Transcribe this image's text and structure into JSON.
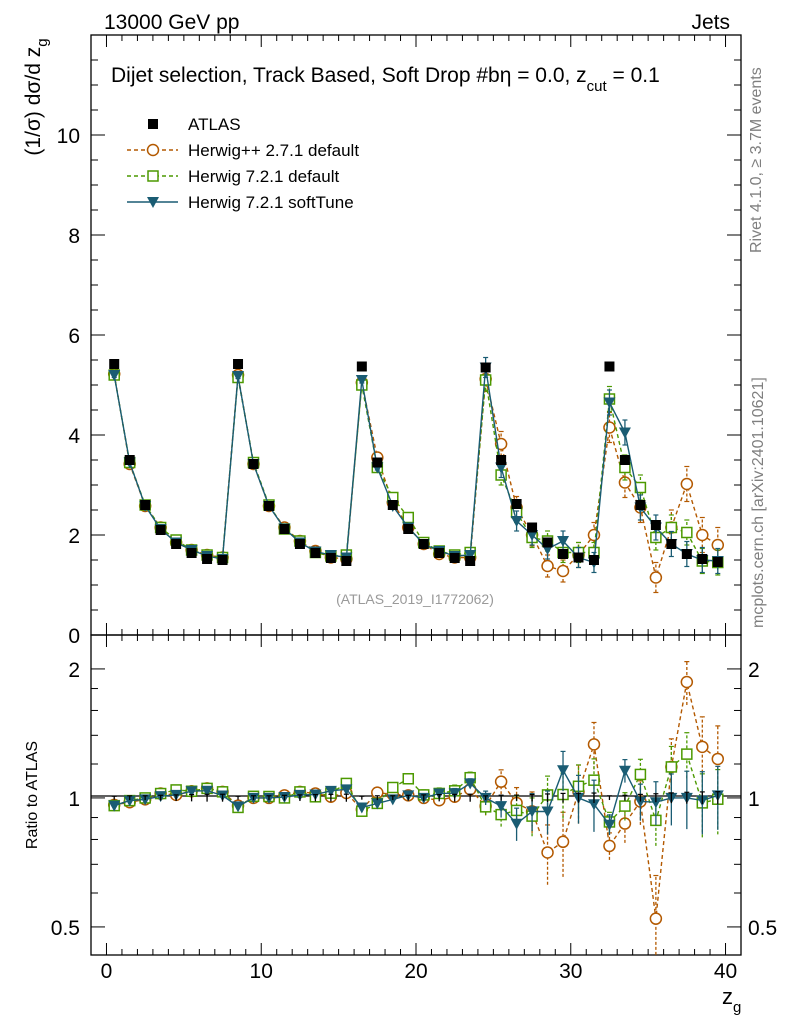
{
  "header": {
    "left": "13000 GeV pp",
    "right": "Jets"
  },
  "side_labels": {
    "rivet": "Rivet 4.1.0, ≥ 3.7M events",
    "mcplots": "mcplots.cern.ch [arXiv:2401.10621]"
  },
  "chart_data": {
    "type": "scatter",
    "title": "Dijet selection, Track Based, Soft Drop #b",
    "title_suffix": "η = 0.0, z",
    "title_sub": "cut",
    "title_end": " = 0.1",
    "watermark": "(ATLAS_2019_I1772062)",
    "ylabel": "(1/σ) dσ/d z",
    "ylabel_sub": "g",
    "ratio_ylabel": "Ratio to ATLAS",
    "xlabel": "z",
    "xlabel_sub": "g",
    "xlim": [
      -1,
      41
    ],
    "ylim": [
      0,
      12
    ],
    "ratio_ylim": [
      0.43,
      2.4
    ],
    "x_ticks": [
      0,
      10,
      20,
      30,
      40
    ],
    "x_tick_labels": [
      "0",
      "10",
      "20",
      "30",
      "40"
    ],
    "y_ticks": [
      0,
      2,
      4,
      6,
      8,
      10
    ],
    "y_tick_labels": [
      "0",
      "2",
      "4",
      "6",
      "8",
      "10"
    ],
    "ratio_ticks": [
      0.5,
      1,
      2
    ],
    "ratio_tick_labels": [
      "0.5",
      "1",
      "2"
    ],
    "legend": [
      {
        "name": "ATLAS",
        "color": "#000000",
        "marker": "square-filled",
        "line": "none"
      },
      {
        "name": "Herwig++ 2.7.1 default",
        "color": "#b35900",
        "marker": "circle-open",
        "line": "dashed"
      },
      {
        "name": "Herwig 7.2.1 default",
        "color": "#4c9900",
        "marker": "square-open",
        "line": "dashed"
      },
      {
        "name": "Herwig 7.2.1 softTune",
        "color": "#1a5c73",
        "marker": "triangle-down-filled",
        "line": "solid"
      }
    ],
    "x": [
      0.5,
      1.5,
      2.5,
      3.5,
      4.5,
      5.5,
      6.5,
      7.5,
      8.5,
      9.5,
      10.5,
      11.5,
      12.5,
      13.5,
      14.5,
      15.5,
      16.5,
      17.5,
      18.5,
      19.5,
      20.5,
      21.5,
      22.5,
      23.5,
      24.5,
      25.5,
      26.5,
      27.5,
      28.5,
      29.5,
      30.5,
      31.5,
      32.5,
      33.5,
      34.5,
      35.5,
      36.5,
      37.5,
      38.5,
      39.5
    ],
    "series": [
      {
        "name": "ATLAS",
        "values": [
          5.42,
          3.5,
          2.6,
          2.1,
          1.82,
          1.64,
          1.52,
          1.5,
          5.42,
          3.42,
          2.58,
          2.12,
          1.82,
          1.64,
          1.54,
          1.48,
          5.37,
          3.45,
          2.6,
          2.12,
          1.82,
          1.64,
          1.54,
          1.48,
          5.35,
          3.5,
          2.62,
          2.15,
          1.85,
          1.62,
          1.55,
          1.5,
          5.37,
          3.5,
          2.6,
          2.2,
          1.82,
          1.62,
          1.52,
          1.46
        ],
        "errors": [
          0.05,
          0.04,
          0.03,
          0.03,
          0.03,
          0.03,
          0.03,
          0.03,
          0.05,
          0.04,
          0.03,
          0.03,
          0.03,
          0.03,
          0.03,
          0.03,
          0.05,
          0.04,
          0.03,
          0.03,
          0.03,
          0.03,
          0.03,
          0.03,
          0.06,
          0.05,
          0.04,
          0.04,
          0.04,
          0.04,
          0.04,
          0.04,
          0.06,
          0.05,
          0.05,
          0.05,
          0.05,
          0.05,
          0.05,
          0.05
        ]
      },
      {
        "name": "Herwig++ 2.7.1 default",
        "values": [
          5.22,
          3.42,
          2.58,
          2.15,
          1.85,
          1.7,
          1.6,
          1.55,
          5.2,
          3.42,
          2.58,
          2.15,
          1.88,
          1.68,
          1.55,
          1.52,
          5.05,
          3.55,
          2.65,
          2.15,
          1.82,
          1.62,
          1.55,
          1.55,
          5.12,
          3.82,
          2.55,
          2.0,
          1.38,
          1.28,
          1.6,
          2.0,
          4.15,
          3.05,
          2.55,
          1.15,
          2.15,
          3.02,
          2.0,
          1.8
        ],
        "errors": [
          0.06,
          0.05,
          0.04,
          0.04,
          0.04,
          0.04,
          0.04,
          0.04,
          0.06,
          0.05,
          0.04,
          0.04,
          0.04,
          0.04,
          0.04,
          0.04,
          0.07,
          0.06,
          0.05,
          0.05,
          0.05,
          0.05,
          0.05,
          0.05,
          0.25,
          0.25,
          0.22,
          0.22,
          0.22,
          0.22,
          0.25,
          0.25,
          0.3,
          0.3,
          0.3,
          0.3,
          0.35,
          0.35,
          0.35,
          0.35
        ]
      },
      {
        "name": "Herwig 7.2.1 default",
        "values": [
          5.2,
          3.45,
          2.6,
          2.15,
          1.9,
          1.7,
          1.6,
          1.55,
          5.15,
          3.45,
          2.6,
          2.12,
          1.88,
          1.65,
          1.58,
          1.6,
          5.0,
          3.35,
          2.75,
          2.35,
          1.85,
          1.68,
          1.6,
          1.65,
          5.1,
          3.2,
          2.45,
          1.95,
          1.88,
          1.65,
          1.65,
          1.65,
          4.72,
          3.35,
          2.95,
          1.95,
          2.15,
          2.05,
          1.48,
          1.45
        ],
        "errors": [
          0.06,
          0.05,
          0.04,
          0.04,
          0.04,
          0.04,
          0.04,
          0.04,
          0.06,
          0.05,
          0.04,
          0.04,
          0.04,
          0.04,
          0.04,
          0.04,
          0.07,
          0.06,
          0.05,
          0.05,
          0.05,
          0.05,
          0.05,
          0.05,
          0.22,
          0.2,
          0.2,
          0.2,
          0.2,
          0.2,
          0.2,
          0.2,
          0.25,
          0.25,
          0.25,
          0.25,
          0.25,
          0.25,
          0.25,
          0.25
        ]
      },
      {
        "name": "Herwig 7.2.1 softTune",
        "values": [
          5.2,
          3.45,
          2.58,
          2.12,
          1.85,
          1.7,
          1.58,
          1.52,
          5.18,
          3.42,
          2.58,
          2.13,
          1.85,
          1.67,
          1.6,
          1.55,
          5.1,
          3.35,
          2.58,
          2.15,
          1.82,
          1.68,
          1.58,
          1.6,
          5.35,
          3.35,
          2.28,
          2.0,
          1.72,
          1.88,
          1.55,
          1.45,
          4.65,
          4.05,
          2.55,
          2.15,
          1.82,
          1.62,
          1.5,
          1.48
        ],
        "errors": [
          0.05,
          0.04,
          0.03,
          0.03,
          0.03,
          0.03,
          0.03,
          0.03,
          0.05,
          0.04,
          0.03,
          0.03,
          0.03,
          0.03,
          0.03,
          0.03,
          0.06,
          0.05,
          0.04,
          0.04,
          0.04,
          0.04,
          0.04,
          0.04,
          0.2,
          0.2,
          0.2,
          0.2,
          0.2,
          0.2,
          0.2,
          0.2,
          0.25,
          0.25,
          0.25,
          0.25,
          0.25,
          0.25,
          0.25,
          0.25
        ]
      }
    ]
  }
}
